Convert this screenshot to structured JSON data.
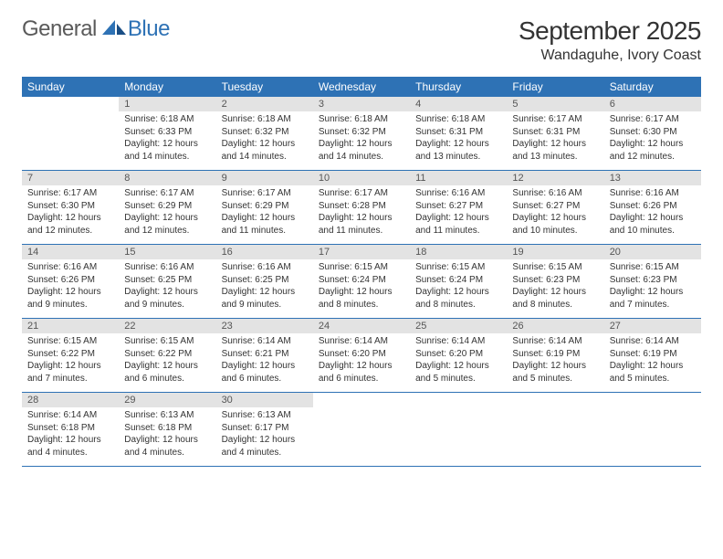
{
  "brand": {
    "general": "General",
    "blue": "Blue"
  },
  "title": "September 2025",
  "location": "Wandaguhe, Ivory Coast",
  "colors": {
    "header_bg": "#2e72b5",
    "header_text": "#ffffff",
    "daynum_bg": "#e3e3e3",
    "daynum_text": "#555555",
    "cell_text": "#333333",
    "rule": "#2e72b5",
    "page_bg": "#ffffff",
    "logo_gray": "#5a5a5a",
    "logo_blue": "#2e72b5"
  },
  "weekdays": [
    "Sunday",
    "Monday",
    "Tuesday",
    "Wednesday",
    "Thursday",
    "Friday",
    "Saturday"
  ],
  "weeks": [
    [
      null,
      {
        "n": "1",
        "sunrise": "Sunrise: 6:18 AM",
        "sunset": "Sunset: 6:33 PM",
        "daylight": "Daylight: 12 hours and 14 minutes."
      },
      {
        "n": "2",
        "sunrise": "Sunrise: 6:18 AM",
        "sunset": "Sunset: 6:32 PM",
        "daylight": "Daylight: 12 hours and 14 minutes."
      },
      {
        "n": "3",
        "sunrise": "Sunrise: 6:18 AM",
        "sunset": "Sunset: 6:32 PM",
        "daylight": "Daylight: 12 hours and 14 minutes."
      },
      {
        "n": "4",
        "sunrise": "Sunrise: 6:18 AM",
        "sunset": "Sunset: 6:31 PM",
        "daylight": "Daylight: 12 hours and 13 minutes."
      },
      {
        "n": "5",
        "sunrise": "Sunrise: 6:17 AM",
        "sunset": "Sunset: 6:31 PM",
        "daylight": "Daylight: 12 hours and 13 minutes."
      },
      {
        "n": "6",
        "sunrise": "Sunrise: 6:17 AM",
        "sunset": "Sunset: 6:30 PM",
        "daylight": "Daylight: 12 hours and 12 minutes."
      }
    ],
    [
      {
        "n": "7",
        "sunrise": "Sunrise: 6:17 AM",
        "sunset": "Sunset: 6:30 PM",
        "daylight": "Daylight: 12 hours and 12 minutes."
      },
      {
        "n": "8",
        "sunrise": "Sunrise: 6:17 AM",
        "sunset": "Sunset: 6:29 PM",
        "daylight": "Daylight: 12 hours and 12 minutes."
      },
      {
        "n": "9",
        "sunrise": "Sunrise: 6:17 AM",
        "sunset": "Sunset: 6:29 PM",
        "daylight": "Daylight: 12 hours and 11 minutes."
      },
      {
        "n": "10",
        "sunrise": "Sunrise: 6:17 AM",
        "sunset": "Sunset: 6:28 PM",
        "daylight": "Daylight: 12 hours and 11 minutes."
      },
      {
        "n": "11",
        "sunrise": "Sunrise: 6:16 AM",
        "sunset": "Sunset: 6:27 PM",
        "daylight": "Daylight: 12 hours and 11 minutes."
      },
      {
        "n": "12",
        "sunrise": "Sunrise: 6:16 AM",
        "sunset": "Sunset: 6:27 PM",
        "daylight": "Daylight: 12 hours and 10 minutes."
      },
      {
        "n": "13",
        "sunrise": "Sunrise: 6:16 AM",
        "sunset": "Sunset: 6:26 PM",
        "daylight": "Daylight: 12 hours and 10 minutes."
      }
    ],
    [
      {
        "n": "14",
        "sunrise": "Sunrise: 6:16 AM",
        "sunset": "Sunset: 6:26 PM",
        "daylight": "Daylight: 12 hours and 9 minutes."
      },
      {
        "n": "15",
        "sunrise": "Sunrise: 6:16 AM",
        "sunset": "Sunset: 6:25 PM",
        "daylight": "Daylight: 12 hours and 9 minutes."
      },
      {
        "n": "16",
        "sunrise": "Sunrise: 6:16 AM",
        "sunset": "Sunset: 6:25 PM",
        "daylight": "Daylight: 12 hours and 9 minutes."
      },
      {
        "n": "17",
        "sunrise": "Sunrise: 6:15 AM",
        "sunset": "Sunset: 6:24 PM",
        "daylight": "Daylight: 12 hours and 8 minutes."
      },
      {
        "n": "18",
        "sunrise": "Sunrise: 6:15 AM",
        "sunset": "Sunset: 6:24 PM",
        "daylight": "Daylight: 12 hours and 8 minutes."
      },
      {
        "n": "19",
        "sunrise": "Sunrise: 6:15 AM",
        "sunset": "Sunset: 6:23 PM",
        "daylight": "Daylight: 12 hours and 8 minutes."
      },
      {
        "n": "20",
        "sunrise": "Sunrise: 6:15 AM",
        "sunset": "Sunset: 6:23 PM",
        "daylight": "Daylight: 12 hours and 7 minutes."
      }
    ],
    [
      {
        "n": "21",
        "sunrise": "Sunrise: 6:15 AM",
        "sunset": "Sunset: 6:22 PM",
        "daylight": "Daylight: 12 hours and 7 minutes."
      },
      {
        "n": "22",
        "sunrise": "Sunrise: 6:15 AM",
        "sunset": "Sunset: 6:22 PM",
        "daylight": "Daylight: 12 hours and 6 minutes."
      },
      {
        "n": "23",
        "sunrise": "Sunrise: 6:14 AM",
        "sunset": "Sunset: 6:21 PM",
        "daylight": "Daylight: 12 hours and 6 minutes."
      },
      {
        "n": "24",
        "sunrise": "Sunrise: 6:14 AM",
        "sunset": "Sunset: 6:20 PM",
        "daylight": "Daylight: 12 hours and 6 minutes."
      },
      {
        "n": "25",
        "sunrise": "Sunrise: 6:14 AM",
        "sunset": "Sunset: 6:20 PM",
        "daylight": "Daylight: 12 hours and 5 minutes."
      },
      {
        "n": "26",
        "sunrise": "Sunrise: 6:14 AM",
        "sunset": "Sunset: 6:19 PM",
        "daylight": "Daylight: 12 hours and 5 minutes."
      },
      {
        "n": "27",
        "sunrise": "Sunrise: 6:14 AM",
        "sunset": "Sunset: 6:19 PM",
        "daylight": "Daylight: 12 hours and 5 minutes."
      }
    ],
    [
      {
        "n": "28",
        "sunrise": "Sunrise: 6:14 AM",
        "sunset": "Sunset: 6:18 PM",
        "daylight": "Daylight: 12 hours and 4 minutes."
      },
      {
        "n": "29",
        "sunrise": "Sunrise: 6:13 AM",
        "sunset": "Sunset: 6:18 PM",
        "daylight": "Daylight: 12 hours and 4 minutes."
      },
      {
        "n": "30",
        "sunrise": "Sunrise: 6:13 AM",
        "sunset": "Sunset: 6:17 PM",
        "daylight": "Daylight: 12 hours and 4 minutes."
      },
      null,
      null,
      null,
      null
    ]
  ]
}
